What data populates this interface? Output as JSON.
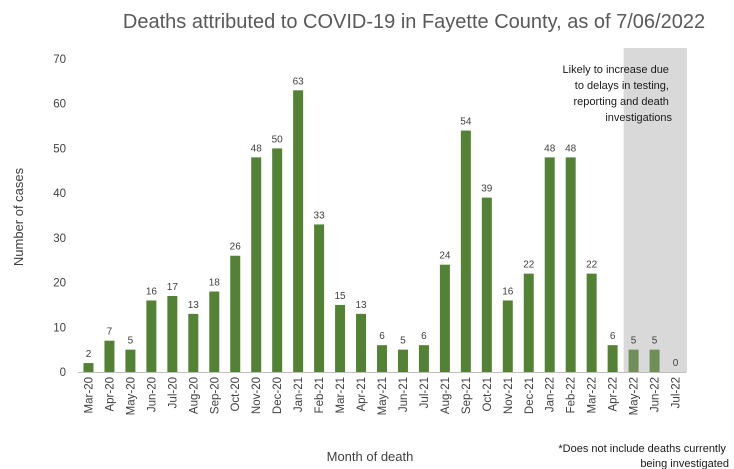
{
  "chart_data": {
    "type": "bar",
    "title": "Deaths attributed to COVID-19 in Fayette County, as of 7/06/2022",
    "xlabel": "Month of death",
    "ylabel": "Number of cases",
    "ylim": [
      0,
      70
    ],
    "yticks": [
      0,
      10,
      20,
      30,
      40,
      50,
      60,
      70
    ],
    "grid": false,
    "categories": [
      "Mar-20",
      "Apr-20",
      "May-20",
      "Jun-20",
      "Jul-20",
      "Aug-20",
      "Sep-20",
      "Oct-20",
      "Nov-20",
      "Dec-20",
      "Jan-21",
      "Feb-21",
      "Mar-21",
      "Apr-21",
      "May-21",
      "Jun-21",
      "Jul-21",
      "Aug-21",
      "Sep-21",
      "Oct-21",
      "Nov-21",
      "Dec-21",
      "Jan-22",
      "Feb-22",
      "Mar-22",
      "Apr-22",
      "May-22",
      "Jun-22",
      "Jul-22"
    ],
    "values": [
      2,
      7,
      5,
      16,
      17,
      13,
      18,
      26,
      48,
      50,
      63,
      33,
      15,
      13,
      6,
      5,
      6,
      24,
      54,
      39,
      16,
      22,
      48,
      48,
      22,
      6,
      5,
      5,
      0
    ],
    "shaded_categories": [
      "May-22",
      "Jun-22",
      "Jul-22"
    ],
    "bar_color": "#548235",
    "shaded_bar_color": "#6f8f57",
    "shade_color": "#d9d9d9",
    "annotation": [
      "Likely to increase due",
      "to delays in testing,",
      "reporting and death",
      "investigations"
    ],
    "footnote": [
      "*Does not include deaths currently",
      "being investigated"
    ]
  }
}
